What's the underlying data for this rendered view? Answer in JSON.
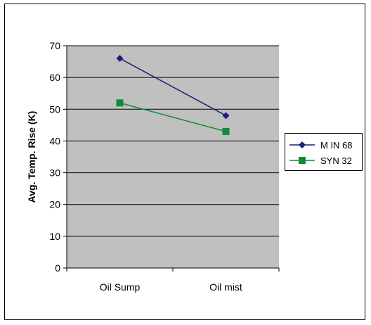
{
  "chart_data": {
    "type": "line",
    "title": "",
    "xlabel": "",
    "ylabel": "Avg. Temp. Rise (K)",
    "categories": [
      "Oil Sump",
      "Oil mist"
    ],
    "ylim": [
      0,
      70
    ],
    "yticks": [
      0,
      10,
      20,
      30,
      40,
      50,
      60,
      70
    ],
    "grid": true,
    "legend_position": "right",
    "plot_background": "#c0c0c0",
    "series": [
      {
        "name": "M IN 68",
        "values": [
          66,
          48
        ],
        "color": "#1f1f7a",
        "marker": "diamond"
      },
      {
        "name": "SYN 32",
        "values": [
          52,
          43
        ],
        "color": "#118a3a",
        "marker": "square"
      }
    ]
  }
}
